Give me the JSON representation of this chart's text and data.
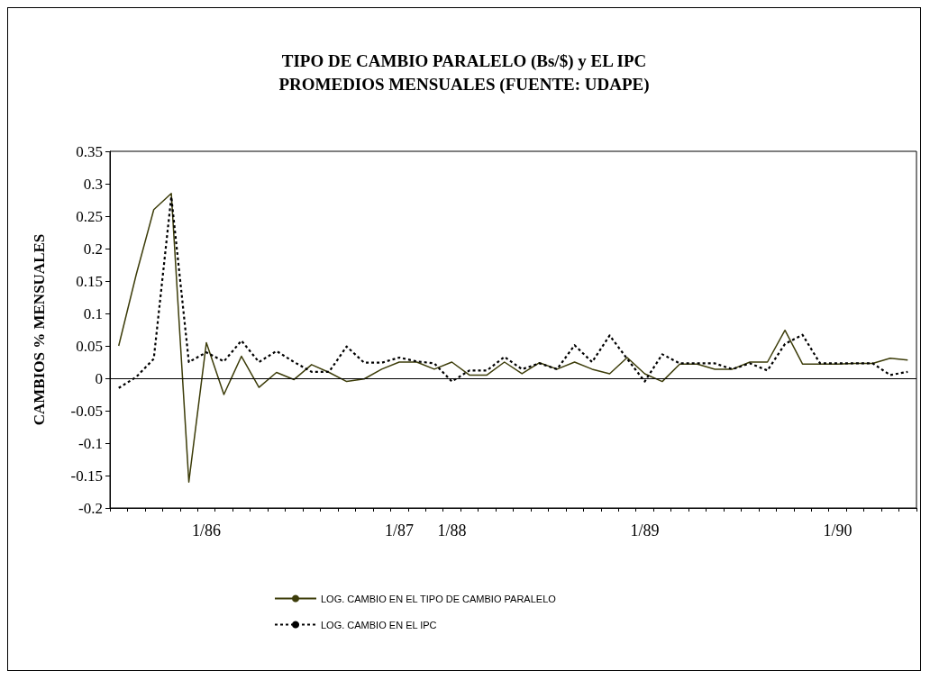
{
  "chart_data": {
    "type": "line",
    "title": "TIPO DE CAMBIO PARALELO (Bs/$) y EL IPC\nPROMEDIOS MENSUALES (FUENTE: UDAPE)",
    "ylabel": "CAMBIOS % MENSUALES",
    "categories": [
      null,
      null,
      null,
      null,
      null,
      "1/86",
      null,
      null,
      null,
      null,
      null,
      null,
      null,
      null,
      null,
      null,
      "1/87",
      null,
      null,
      "1/88",
      null,
      null,
      null,
      null,
      null,
      null,
      null,
      null,
      null,
      null,
      "1/89",
      null,
      null,
      null,
      null,
      null,
      null,
      null,
      null,
      null,
      null,
      "1/90",
      null,
      null,
      null,
      null
    ],
    "series": [
      {
        "name": "LOG. CAMBIO EN EL TIPO DE CAMBIO PARALELO",
        "color": "#3d3d0a",
        "line_style": "solid",
        "values": [
          0.05,
          0.16,
          0.26,
          0.285,
          -0.16,
          0.055,
          -0.025,
          0.034,
          -0.014,
          0.009,
          -0.002,
          0.021,
          0.009,
          -0.005,
          -0.001,
          0.014,
          0.025,
          0.025,
          0.014,
          0.025,
          0.005,
          0.005,
          0.025,
          0.007,
          0.024,
          0.014,
          0.025,
          0.014,
          0.007,
          0.032,
          0.007,
          -0.005,
          0.022,
          0.022,
          0.014,
          0.014,
          0.025,
          0.025,
          0.074,
          0.022,
          0.022,
          0.022,
          0.023,
          0.023,
          0.031,
          0.028
        ]
      },
      {
        "name": "LOG. CAMBIO EN EL IPC",
        "color": "#000000",
        "line_style": "dotted",
        "values": [
          -0.015,
          0.002,
          0.03,
          0.28,
          0.025,
          0.04,
          0.026,
          0.058,
          0.025,
          0.042,
          0.025,
          0.01,
          0.01,
          0.049,
          0.024,
          0.024,
          0.032,
          0.026,
          0.023,
          -0.005,
          0.012,
          0.012,
          0.033,
          0.014,
          0.023,
          0.014,
          0.051,
          0.025,
          0.066,
          0.03,
          -0.005,
          0.037,
          0.023,
          0.023,
          0.023,
          0.014,
          0.023,
          0.012,
          0.053,
          0.067,
          0.023,
          0.023,
          0.023,
          0.023,
          0.005,
          0.01
        ]
      }
    ],
    "ylim": [
      -0.2,
      0.35
    ],
    "yticks": [
      -0.2,
      -0.15,
      -0.1,
      -0.05,
      0,
      0.05,
      0.1,
      0.15,
      0.2,
      0.25,
      0.3,
      0.35
    ],
    "ref_lines": [
      {
        "axis": "y",
        "value": 0,
        "color": "#000000"
      }
    ],
    "grid": false,
    "legend": "bottom",
    "marker": "none"
  }
}
